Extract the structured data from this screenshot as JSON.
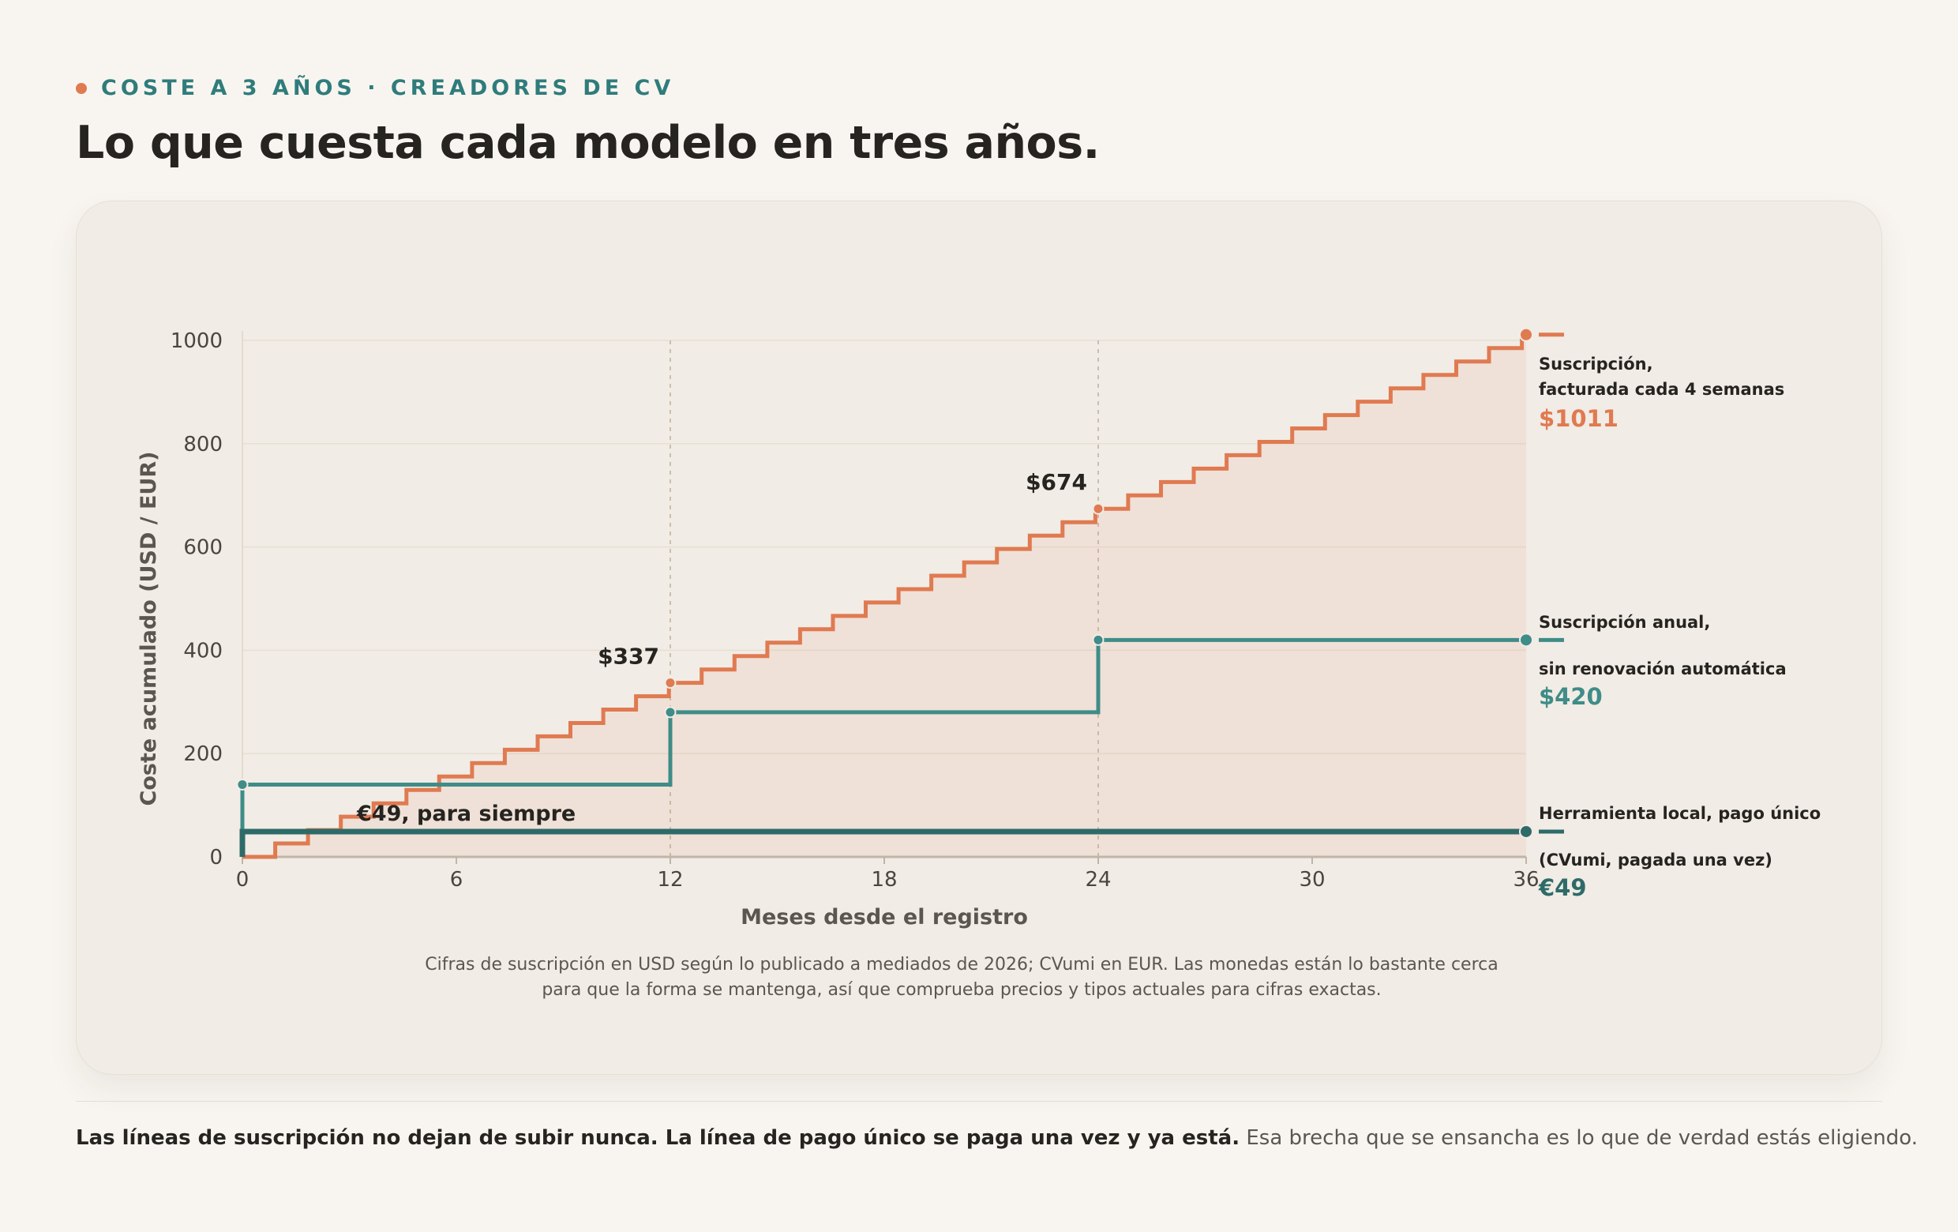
{
  "header": {
    "eyebrow": "COSTE A 3 AÑOS · CREADORES DE CV",
    "title": "Lo que cuesta cada modelo en tres años."
  },
  "colors": {
    "subscription": "#e07a51",
    "annual": "#3f8c88",
    "onetime": "#2e6b68",
    "accent": "#2f7c7b"
  },
  "chart_data": {
    "type": "line",
    "step": true,
    "xlabel": "Meses desde el registro",
    "ylabel": "Coste acumulado (USD / EUR)",
    "xlim": [
      0,
      36
    ],
    "ylim": [
      0,
      1000
    ],
    "x_ticks": [
      "0",
      "6",
      "12",
      "18",
      "24",
      "30",
      "36"
    ],
    "y_ticks": [
      "0",
      "200",
      "400",
      "600",
      "800",
      "1000"
    ],
    "grid": "horizontal",
    "reference_lines_x": [
      12,
      24
    ],
    "series": [
      {
        "name": "Suscripción, facturada cada 4 semanas",
        "label_lines": [
          "Suscripción,",
          "facturada cada 4 semanas"
        ],
        "end_label": "$1011",
        "color": "#e07a51",
        "step_every_months": 0.92,
        "step_value": 25.92,
        "end_value": 1011,
        "annotations": [
          {
            "x": 12,
            "y": 337,
            "label": "$337"
          },
          {
            "x": 24,
            "y": 674,
            "label": "$674"
          }
        ]
      },
      {
        "name": "Suscripción anual, sin renovación automática",
        "label_lines": [
          "Suscripción anual,",
          "sin renovación automática"
        ],
        "end_label": "$420",
        "color": "#3f8c88",
        "points": [
          [
            0,
            140
          ],
          [
            12,
            280
          ],
          [
            24,
            420
          ],
          [
            36,
            420
          ]
        ]
      },
      {
        "name": "Herramienta local, pago único",
        "label_lines": [
          "Herramienta local, pago único",
          "(CVumi, pagada una vez)"
        ],
        "end_label": "€49",
        "color": "#2e6b68",
        "points": [
          [
            0,
            49
          ],
          [
            36,
            49
          ]
        ],
        "inline_label": "€49, para siempre"
      }
    ]
  },
  "footnote": [
    "Cifras de suscripción en USD según lo publicado a mediados de 2026; CVumi en EUR. Las monedas están lo bastante cerca",
    "para que la forma se mantenga, así que comprueba precios y tipos actuales para cifras exactas."
  ],
  "takeaway": {
    "bold": "Las líneas de suscripción no dejan de subir nunca. La línea de pago único se paga una vez y ya está.",
    "rest": " Esa brecha que se ensancha es lo que de verdad estás eligiendo."
  }
}
